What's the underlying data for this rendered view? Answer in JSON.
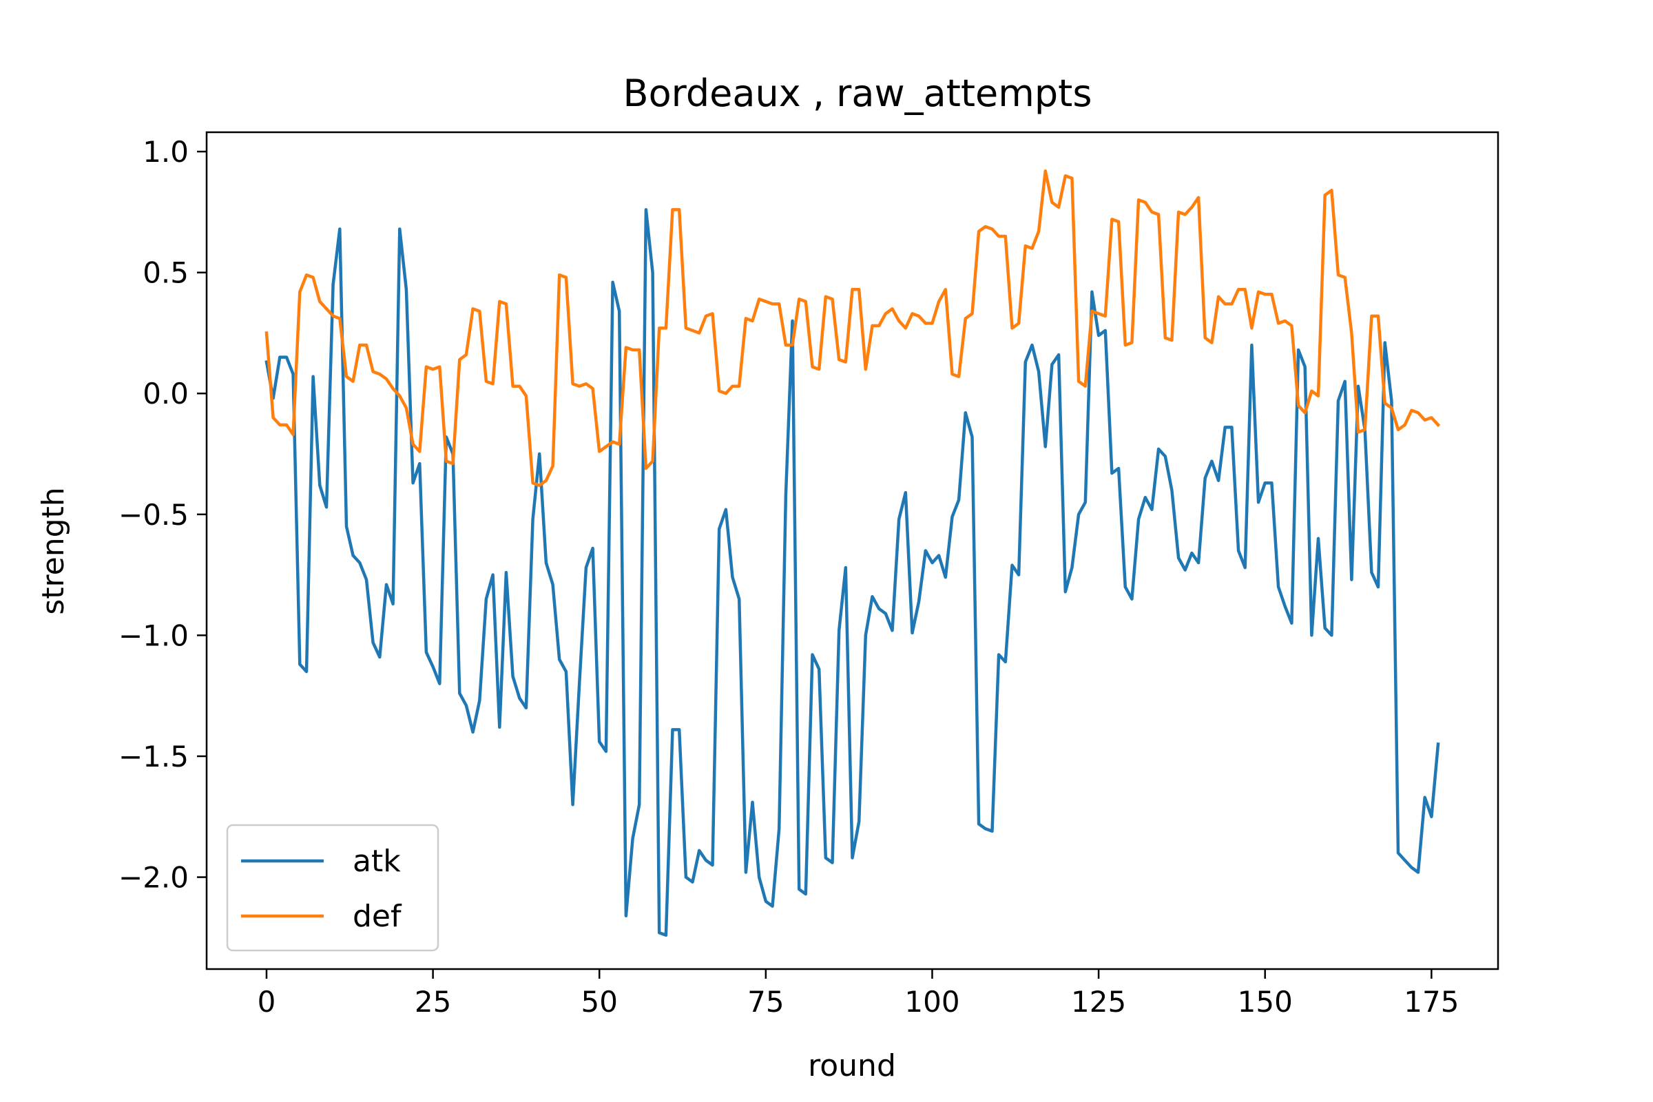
{
  "chart_data": {
    "type": "line",
    "title": "Bordeaux , raw_attempts",
    "xlabel": "round",
    "ylabel": "strength",
    "xlim": [
      -9,
      185
    ],
    "ylim": [
      -2.38,
      1.08
    ],
    "xticks": [
      0,
      25,
      50,
      75,
      100,
      125,
      150,
      175
    ],
    "yticks": [
      1.0,
      0.5,
      0.0,
      -0.5,
      -1.0,
      -1.5,
      -2.0
    ],
    "ytick_labels": [
      "1.0",
      "0.5",
      "0.0",
      "−0.5",
      "−1.0",
      "−1.5",
      "−2.0"
    ],
    "grid": false,
    "legend_position": "lower-left",
    "series": [
      {
        "name": "atk",
        "color": "#1f77b4",
        "x": [
          0,
          1,
          2,
          3,
          4,
          5,
          6,
          7,
          8,
          9,
          10,
          11,
          12,
          13,
          14,
          15,
          16,
          17,
          18,
          19,
          20,
          21,
          22,
          23,
          24,
          25,
          26,
          27,
          28,
          29,
          30,
          31,
          32,
          33,
          34,
          35,
          36,
          37,
          38,
          39,
          40,
          41,
          42,
          43,
          44,
          45,
          46,
          47,
          48,
          49,
          50,
          51,
          52,
          53,
          54,
          55,
          56,
          57,
          58,
          59,
          60,
          61,
          62,
          63,
          64,
          65,
          66,
          67,
          68,
          69,
          70,
          71,
          72,
          73,
          74,
          75,
          76,
          77,
          78,
          79,
          80,
          81,
          82,
          83,
          84,
          85,
          86,
          87,
          88,
          89,
          90,
          91,
          92,
          93,
          94,
          95,
          96,
          97,
          98,
          99,
          100,
          101,
          102,
          103,
          104,
          105,
          106,
          107,
          108,
          109,
          110,
          111,
          112,
          113,
          114,
          115,
          116,
          117,
          118,
          119,
          120,
          121,
          122,
          123,
          124,
          125,
          126,
          127,
          128,
          129,
          130,
          131,
          132,
          133,
          134,
          135,
          136,
          137,
          138,
          139,
          140,
          141,
          142,
          143,
          144,
          145,
          146,
          147,
          148,
          149,
          150,
          151,
          152,
          153,
          154,
          155,
          156,
          157,
          158,
          159,
          160,
          161,
          162,
          163,
          164,
          165,
          166,
          167,
          168,
          169,
          170,
          171,
          172,
          173,
          174,
          175,
          176
        ],
        "y": [
          0.13,
          -0.02,
          0.15,
          0.15,
          0.08,
          -1.12,
          -1.15,
          0.07,
          -0.38,
          -0.47,
          0.45,
          0.68,
          -0.55,
          -0.67,
          -0.7,
          -0.77,
          -1.03,
          -1.09,
          -0.79,
          -0.87,
          0.68,
          0.43,
          -0.37,
          -0.29,
          -1.07,
          -1.13,
          -1.2,
          -0.18,
          -0.25,
          -1.24,
          -1.29,
          -1.4,
          -1.27,
          -0.85,
          -0.75,
          -1.38,
          -0.74,
          -1.17,
          -1.26,
          -1.3,
          -0.52,
          -0.25,
          -0.7,
          -0.79,
          -1.1,
          -1.15,
          -1.7,
          -1.2,
          -0.72,
          -0.64,
          -1.44,
          -1.48,
          0.46,
          0.34,
          -2.16,
          -1.84,
          -1.7,
          0.76,
          0.5,
          -2.23,
          -2.24,
          -1.39,
          -1.39,
          -2.0,
          -2.02,
          -1.89,
          -1.93,
          -1.95,
          -0.56,
          -0.48,
          -0.76,
          -0.85,
          -1.98,
          -1.69,
          -2.0,
          -2.1,
          -2.12,
          -1.8,
          -0.42,
          0.3,
          -2.05,
          -2.07,
          -1.08,
          -1.14,
          -1.92,
          -1.94,
          -0.98,
          -0.72,
          -1.92,
          -1.77,
          -1.0,
          -0.84,
          -0.89,
          -0.91,
          -0.98,
          -0.52,
          -0.41,
          -0.99,
          -0.86,
          -0.65,
          -0.7,
          -0.67,
          -0.76,
          -0.51,
          -0.44,
          -0.08,
          -0.18,
          -1.78,
          -1.8,
          -1.81,
          -1.08,
          -1.11,
          -0.71,
          -0.75,
          0.13,
          0.2,
          0.09,
          -0.22,
          0.12,
          0.16,
          -0.82,
          -0.72,
          -0.5,
          -0.45,
          0.42,
          0.24,
          0.26,
          -0.33,
          -0.31,
          -0.8,
          -0.85,
          -0.52,
          -0.43,
          -0.48,
          -0.23,
          -0.26,
          -0.4,
          -0.68,
          -0.73,
          -0.66,
          -0.7,
          -0.35,
          -0.28,
          -0.36,
          -0.14,
          -0.14,
          -0.65,
          -0.72,
          0.2,
          -0.45,
          -0.37,
          -0.37,
          -0.8,
          -0.88,
          -0.95,
          0.18,
          0.11,
          -1.0,
          -0.6,
          -0.97,
          -1.0,
          -0.03,
          0.05,
          -0.77,
          0.03,
          -0.15,
          -0.74,
          -0.8,
          0.21,
          -0.03,
          -1.9,
          -1.93,
          -1.96,
          -1.98,
          -1.67,
          -1.75,
          -1.45
        ]
      },
      {
        "name": "def",
        "color": "#ff7f0e",
        "x": [
          0,
          1,
          2,
          3,
          4,
          5,
          6,
          7,
          8,
          9,
          10,
          11,
          12,
          13,
          14,
          15,
          16,
          17,
          18,
          19,
          20,
          21,
          22,
          23,
          24,
          25,
          26,
          27,
          28,
          29,
          30,
          31,
          32,
          33,
          34,
          35,
          36,
          37,
          38,
          39,
          40,
          41,
          42,
          43,
          44,
          45,
          46,
          47,
          48,
          49,
          50,
          51,
          52,
          53,
          54,
          55,
          56,
          57,
          58,
          59,
          60,
          61,
          62,
          63,
          64,
          65,
          66,
          67,
          68,
          69,
          70,
          71,
          72,
          73,
          74,
          75,
          76,
          77,
          78,
          79,
          80,
          81,
          82,
          83,
          84,
          85,
          86,
          87,
          88,
          89,
          90,
          91,
          92,
          93,
          94,
          95,
          96,
          97,
          98,
          99,
          100,
          101,
          102,
          103,
          104,
          105,
          106,
          107,
          108,
          109,
          110,
          111,
          112,
          113,
          114,
          115,
          116,
          117,
          118,
          119,
          120,
          121,
          122,
          123,
          124,
          125,
          126,
          127,
          128,
          129,
          130,
          131,
          132,
          133,
          134,
          135,
          136,
          137,
          138,
          139,
          140,
          141,
          142,
          143,
          144,
          145,
          146,
          147,
          148,
          149,
          150,
          151,
          152,
          153,
          154,
          155,
          156,
          157,
          158,
          159,
          160,
          161,
          162,
          163,
          164,
          165,
          166,
          167,
          168,
          169,
          170,
          171,
          172,
          173,
          174,
          175,
          176
        ],
        "y": [
          0.25,
          -0.1,
          -0.13,
          -0.13,
          -0.17,
          0.42,
          0.49,
          0.48,
          0.38,
          0.35,
          0.32,
          0.31,
          0.07,
          0.05,
          0.2,
          0.2,
          0.09,
          0.08,
          0.06,
          0.02,
          -0.01,
          -0.06,
          -0.21,
          -0.24,
          0.11,
          0.1,
          0.11,
          -0.28,
          -0.29,
          0.14,
          0.16,
          0.35,
          0.34,
          0.05,
          0.04,
          0.38,
          0.37,
          0.03,
          0.03,
          -0.01,
          -0.37,
          -0.38,
          -0.36,
          -0.3,
          0.49,
          0.48,
          0.04,
          0.03,
          0.04,
          0.02,
          -0.24,
          -0.22,
          -0.2,
          -0.21,
          0.19,
          0.18,
          0.18,
          -0.31,
          -0.28,
          0.27,
          0.27,
          0.76,
          0.76,
          0.27,
          0.26,
          0.25,
          0.32,
          0.33,
          0.01,
          0.0,
          0.03,
          0.03,
          0.31,
          0.3,
          0.39,
          0.38,
          0.37,
          0.37,
          0.2,
          0.2,
          0.39,
          0.38,
          0.11,
          0.1,
          0.4,
          0.39,
          0.14,
          0.13,
          0.43,
          0.43,
          0.1,
          0.28,
          0.28,
          0.33,
          0.35,
          0.3,
          0.27,
          0.33,
          0.32,
          0.29,
          0.29,
          0.38,
          0.43,
          0.08,
          0.07,
          0.31,
          0.33,
          0.67,
          0.69,
          0.68,
          0.65,
          0.65,
          0.27,
          0.29,
          0.61,
          0.6,
          0.67,
          0.92,
          0.79,
          0.77,
          0.9,
          0.89,
          0.05,
          0.03,
          0.34,
          0.33,
          0.32,
          0.72,
          0.71,
          0.2,
          0.21,
          0.8,
          0.79,
          0.75,
          0.74,
          0.23,
          0.22,
          0.75,
          0.74,
          0.77,
          0.81,
          0.23,
          0.21,
          0.4,
          0.37,
          0.37,
          0.43,
          0.43,
          0.27,
          0.42,
          0.41,
          0.41,
          0.29,
          0.3,
          0.28,
          -0.05,
          -0.08,
          0.01,
          -0.01,
          0.82,
          0.84,
          0.49,
          0.48,
          0.25,
          -0.16,
          -0.15,
          0.32,
          0.32,
          -0.04,
          -0.06,
          -0.15,
          -0.13,
          -0.07,
          -0.08,
          -0.11,
          -0.1,
          -0.13
        ]
      }
    ]
  }
}
